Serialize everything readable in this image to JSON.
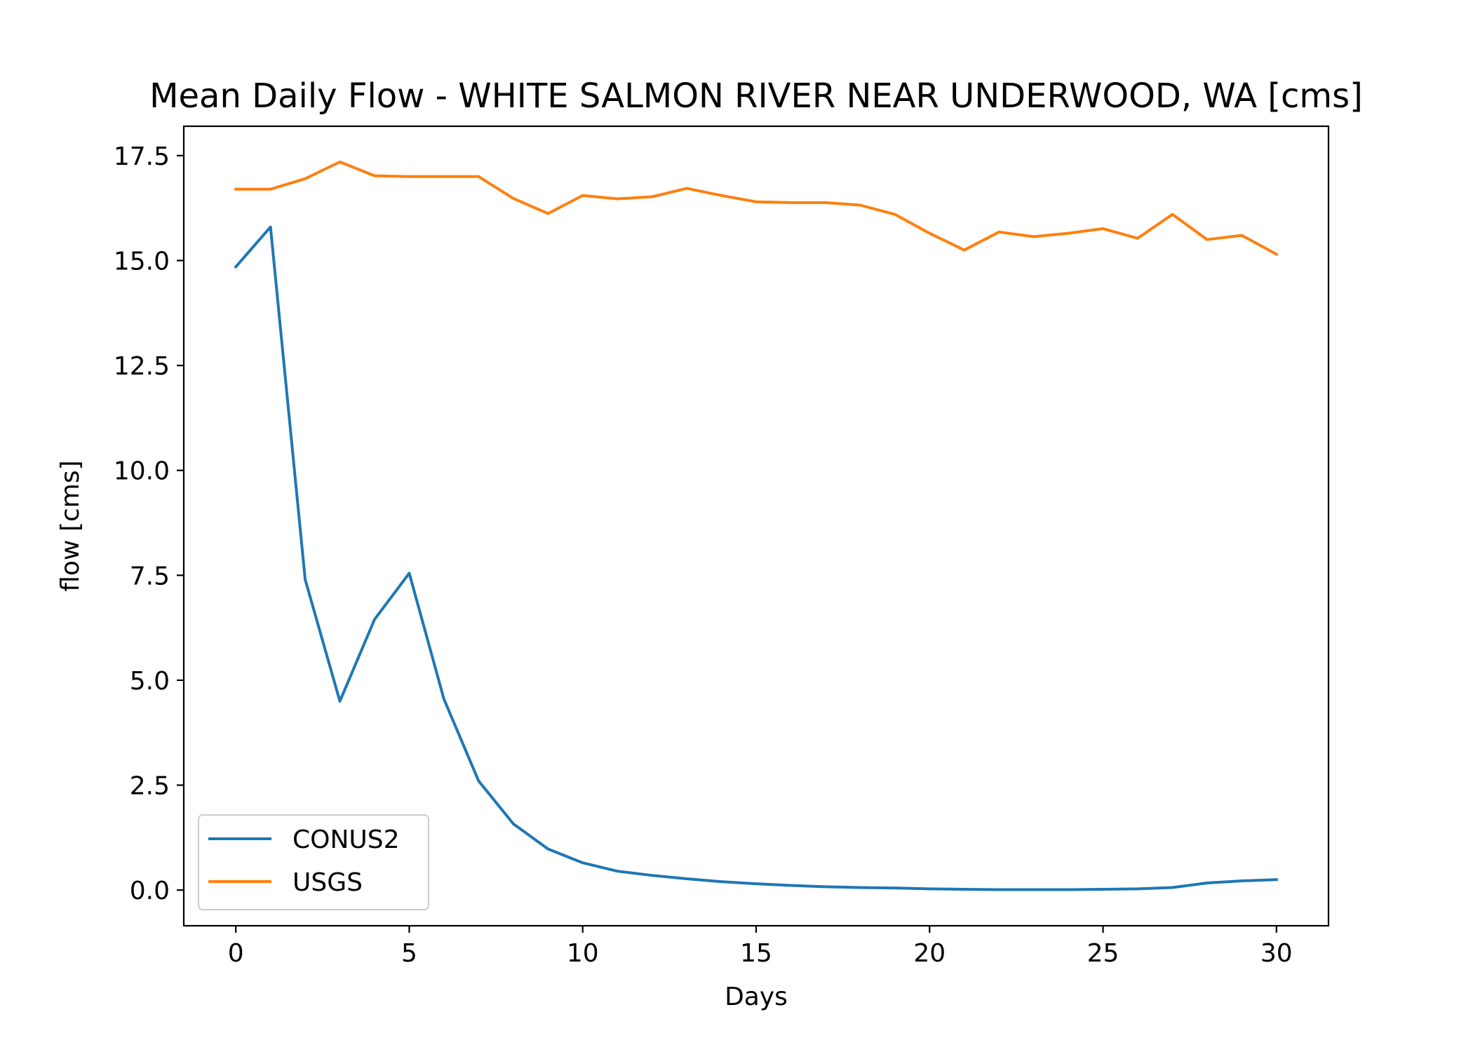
{
  "chart_data": {
    "type": "line",
    "title": "Mean Daily Flow - WHITE SALMON RIVER NEAR UNDERWOOD, WA [cms]",
    "xlabel": "Days",
    "ylabel": "flow [cms]",
    "xlim": [
      -1.5,
      31.5
    ],
    "ylim": [
      -0.85,
      18.2
    ],
    "x_ticks": [
      0,
      5,
      10,
      15,
      20,
      25,
      30
    ],
    "x_tick_labels": [
      "0",
      "5",
      "10",
      "15",
      "20",
      "25",
      "30"
    ],
    "y_ticks": [
      0,
      2.5,
      5,
      7.5,
      10,
      12.5,
      15,
      17.5
    ],
    "y_tick_labels": [
      "0.0",
      "2.5",
      "5.0",
      "7.5",
      "10.0",
      "12.5",
      "15.0",
      "17.5"
    ],
    "grid": false,
    "legend_position": "lower-left",
    "x": [
      0,
      1,
      2,
      3,
      4,
      5,
      6,
      7,
      8,
      9,
      10,
      11,
      12,
      13,
      14,
      15,
      16,
      17,
      18,
      19,
      20,
      21,
      22,
      23,
      24,
      25,
      26,
      27,
      28,
      29,
      30
    ],
    "series": [
      {
        "name": "CONUS2",
        "color": "#1f77b4",
        "values": [
          14.85,
          15.8,
          7.4,
          4.5,
          6.45,
          7.55,
          4.55,
          2.6,
          1.58,
          0.98,
          0.65,
          0.45,
          0.35,
          0.27,
          0.2,
          0.15,
          0.11,
          0.08,
          0.06,
          0.05,
          0.03,
          0.02,
          0.01,
          0.01,
          0.01,
          0.02,
          0.03,
          0.06,
          0.17,
          0.22,
          0.25
        ]
      },
      {
        "name": "USGS",
        "color": "#ff7f0e",
        "values": [
          16.7,
          16.7,
          16.95,
          17.35,
          17.02,
          17.0,
          17.0,
          17.0,
          16.48,
          16.12,
          16.55,
          16.47,
          16.52,
          16.72,
          16.55,
          16.4,
          16.38,
          16.38,
          16.32,
          16.1,
          15.65,
          15.25,
          15.68,
          15.57,
          15.65,
          15.76,
          15.53,
          16.1,
          15.5,
          15.6,
          15.15
        ]
      }
    ]
  }
}
